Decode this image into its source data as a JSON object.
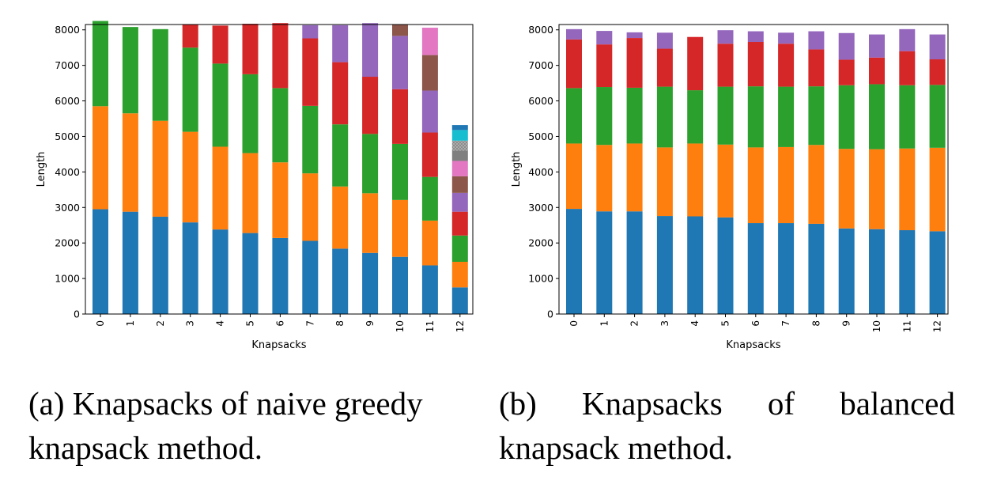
{
  "chart_data": [
    {
      "type": "bar",
      "stacked": true,
      "xlabel": "Knapsacks",
      "ylabel": "Length",
      "ylim": [
        0,
        8150
      ],
      "yticks": [
        0,
        1000,
        2000,
        3000,
        4000,
        5000,
        6000,
        7000,
        8000
      ],
      "categories": [
        "0",
        "1",
        "2",
        "3",
        "4",
        "5",
        "6",
        "7",
        "8",
        "9",
        "10",
        "11",
        "12"
      ],
      "segments": [
        [
          2950,
          2900,
          2400
        ],
        [
          2880,
          2770,
          2430
        ],
        [
          2740,
          2700,
          2580
        ],
        [
          2580,
          2550,
          2370,
          650
        ],
        [
          2380,
          2330,
          2340,
          1070
        ],
        [
          2280,
          2250,
          2220,
          1420
        ],
        [
          2140,
          2130,
          2090,
          1830
        ],
        [
          2060,
          1900,
          1900,
          1900,
          370
        ],
        [
          1840,
          1750,
          1750,
          1750,
          1040
        ],
        [
          1720,
          1680,
          1670,
          1610,
          1510
        ],
        [
          1610,
          1600,
          1580,
          1540,
          1500,
          320
        ],
        [
          1370,
          1260,
          1230,
          1250,
          1180,
          1000,
          770
        ],
        [
          750,
          720,
          740,
          670,
          530,
          470,
          430,
          290,
          280,
          300,
          140
        ]
      ],
      "hatched_segment": [
        12,
        8
      ]
    },
    {
      "type": "bar",
      "stacked": true,
      "xlabel": "Knapsacks",
      "ylabel": "Length",
      "ylim": [
        0,
        8150
      ],
      "yticks": [
        0,
        1000,
        2000,
        3000,
        4000,
        5000,
        6000,
        7000,
        8000
      ],
      "categories": [
        "0",
        "1",
        "2",
        "3",
        "4",
        "5",
        "6",
        "7",
        "8",
        "9",
        "10",
        "11",
        "12"
      ],
      "segments": [
        [
          2960,
          1840,
          1560,
          1370,
          290
        ],
        [
          2890,
          1870,
          1630,
          1200,
          380
        ],
        [
          2890,
          1910,
          1570,
          1400,
          160
        ],
        [
          2760,
          1930,
          1710,
          1070,
          450
        ],
        [
          2750,
          2050,
          1500,
          1500
        ],
        [
          2720,
          2050,
          1630,
          1210,
          380
        ],
        [
          2560,
          2130,
          1720,
          1250,
          300
        ],
        [
          2560,
          2140,
          1700,
          1210,
          310
        ],
        [
          2540,
          2220,
          1650,
          1040,
          510
        ],
        [
          2410,
          2240,
          1790,
          720,
          750
        ],
        [
          2390,
          2250,
          1830,
          750,
          650
        ],
        [
          2360,
          2300,
          1780,
          960,
          620
        ],
        [
          2330,
          2350,
          1770,
          720,
          700
        ]
      ]
    }
  ],
  "palette": [
    "#1f77b4",
    "#ff7f0e",
    "#2ca02c",
    "#d62728",
    "#9467bd",
    "#8c564b",
    "#e377c2",
    "#7f7f7f",
    "#bcbd22",
    "#17becf",
    "#1f77b4"
  ],
  "captions": {
    "a": "(a) Knapsacks of naive greedy knapsack method.",
    "b": "(b) Knapsacks of balanced knapsack method."
  }
}
